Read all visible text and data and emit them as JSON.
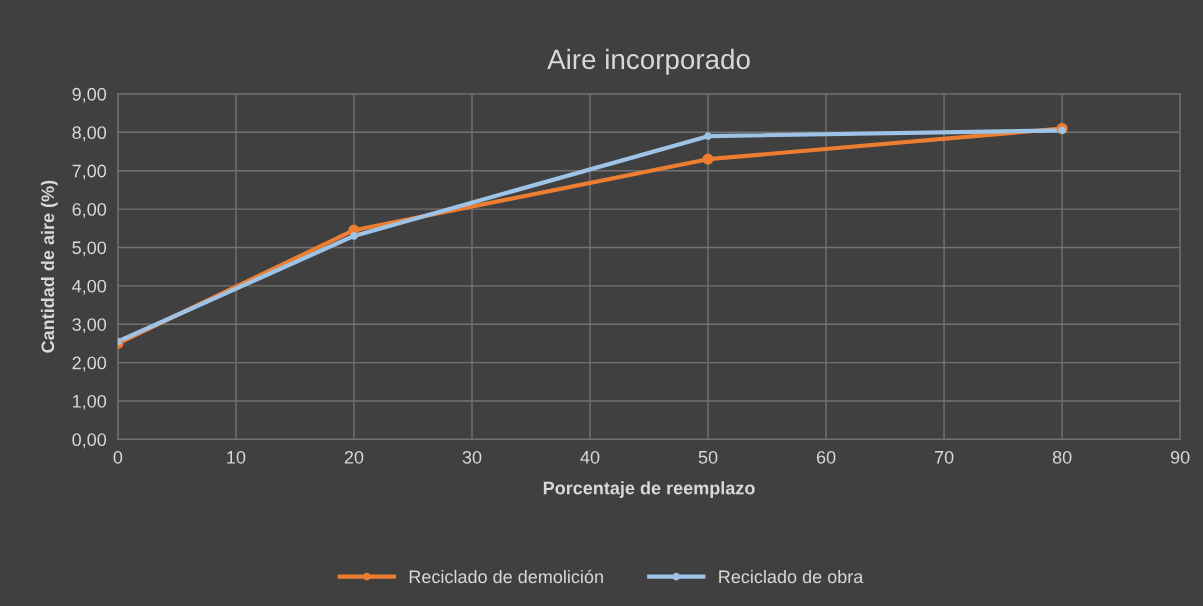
{
  "chart_data": {
    "type": "line",
    "title": "Aire incorporado",
    "xlabel": "Porcentaje de reemplazo",
    "ylabel": "Cantidad de aire (%)",
    "series": [
      {
        "name": "Reciclado de demolición",
        "color": "#ed7d31",
        "x": [
          0,
          20,
          50,
          80
        ],
        "values": [
          2.5,
          5.45,
          7.3,
          8.1
        ]
      },
      {
        "name": "Reciclado de obra",
        "color": "#9dc3e6",
        "x": [
          0,
          20,
          50,
          80
        ],
        "values": [
          2.55,
          5.3,
          7.9,
          8.05
        ]
      }
    ],
    "xlim": [
      0,
      90
    ],
    "xticks": [
      0,
      10,
      20,
      30,
      40,
      50,
      60,
      70,
      80,
      90
    ],
    "ylim": [
      0,
      9
    ],
    "yticks": [
      {
        "value": 0,
        "label": "0,00"
      },
      {
        "value": 1,
        "label": "1,00"
      },
      {
        "value": 2,
        "label": "2,00"
      },
      {
        "value": 3,
        "label": "3,00"
      },
      {
        "value": 4,
        "label": "4,00"
      },
      {
        "value": 5,
        "label": "5,00"
      },
      {
        "value": 6,
        "label": "6,00"
      },
      {
        "value": 7,
        "label": "7,00"
      },
      {
        "value": 8,
        "label": "8,00"
      },
      {
        "value": 9,
        "label": "9,00"
      }
    ],
    "grid": true,
    "legend": "bottom",
    "marker": "circle",
    "line_style": "solid"
  }
}
